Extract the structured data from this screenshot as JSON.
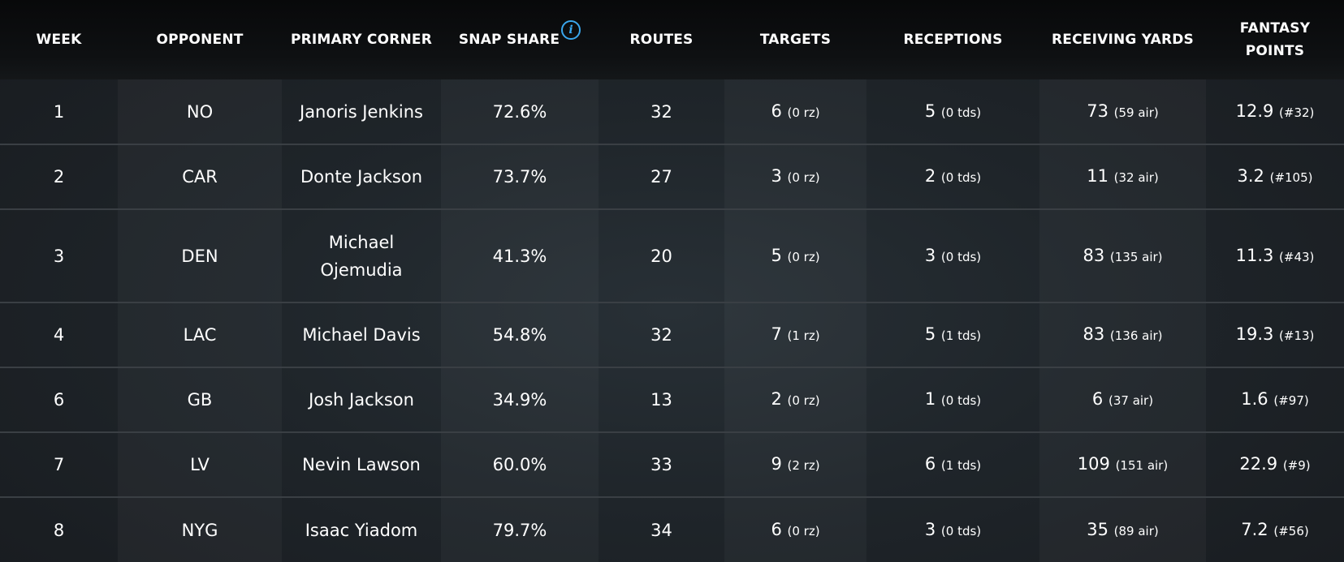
{
  "headers": {
    "week": "WEEK",
    "opponent": "OPPONENT",
    "primary_corner": "PRIMARY CORNER",
    "snap_share": "SNAP SHARE",
    "routes": "ROUTES",
    "targets": "TARGETS",
    "receptions": "RECEPTIONS",
    "receiving_yards": "RECEIVING YARDS",
    "fantasy_points_line1": "FANTASY",
    "fantasy_points_line2": "POINTS",
    "info_icon_glyph": "i"
  },
  "rows": [
    {
      "week": "1",
      "opponent": "NO",
      "corner": "Janoris Jenkins",
      "snap": "72.6%",
      "routes": "32",
      "targets": "6",
      "targets_sub": "(0 rz)",
      "receptions": "5",
      "receptions_sub": "(0 tds)",
      "yards": "73",
      "yards_sub": "(59 air)",
      "points": "12.9",
      "points_sub": "(#32)"
    },
    {
      "week": "2",
      "opponent": "CAR",
      "corner": "Donte Jackson",
      "snap": "73.7%",
      "routes": "27",
      "targets": "3",
      "targets_sub": "(0 rz)",
      "receptions": "2",
      "receptions_sub": "(0 tds)",
      "yards": "11",
      "yards_sub": "(32 air)",
      "points": "3.2",
      "points_sub": "(#105)"
    },
    {
      "week": "3",
      "opponent": "DEN",
      "corner": "Michael Ojemudia",
      "snap": "41.3%",
      "routes": "20",
      "targets": "5",
      "targets_sub": "(0 rz)",
      "receptions": "3",
      "receptions_sub": "(0 tds)",
      "yards": "83",
      "yards_sub": "(135 air)",
      "points": "11.3",
      "points_sub": "(#43)"
    },
    {
      "week": "4",
      "opponent": "LAC",
      "corner": "Michael Davis",
      "snap": "54.8%",
      "routes": "32",
      "targets": "7",
      "targets_sub": "(1 rz)",
      "receptions": "5",
      "receptions_sub": "(1 tds)",
      "yards": "83",
      "yards_sub": "(136 air)",
      "points": "19.3",
      "points_sub": "(#13)"
    },
    {
      "week": "6",
      "opponent": "GB",
      "corner": "Josh Jackson",
      "snap": "34.9%",
      "routes": "13",
      "targets": "2",
      "targets_sub": "(0 rz)",
      "receptions": "1",
      "receptions_sub": "(0 tds)",
      "yards": "6",
      "yards_sub": "(37 air)",
      "points": "1.6",
      "points_sub": "(#97)"
    },
    {
      "week": "7",
      "opponent": "LV",
      "corner": "Nevin Lawson",
      "snap": "60.0%",
      "routes": "33",
      "targets": "9",
      "targets_sub": "(2 rz)",
      "receptions": "6",
      "receptions_sub": "(1 tds)",
      "yards": "109",
      "yards_sub": "(151 air)",
      "points": "22.9",
      "points_sub": "(#9)"
    },
    {
      "week": "8",
      "opponent": "NYG",
      "corner": "Isaac Yiadom",
      "snap": "79.7%",
      "routes": "34",
      "targets": "6",
      "targets_sub": "(0 rz)",
      "receptions": "3",
      "receptions_sub": "(0 tds)",
      "yards": "35",
      "yards_sub": "(89 air)",
      "points": "7.2",
      "points_sub": "(#56)"
    }
  ]
}
